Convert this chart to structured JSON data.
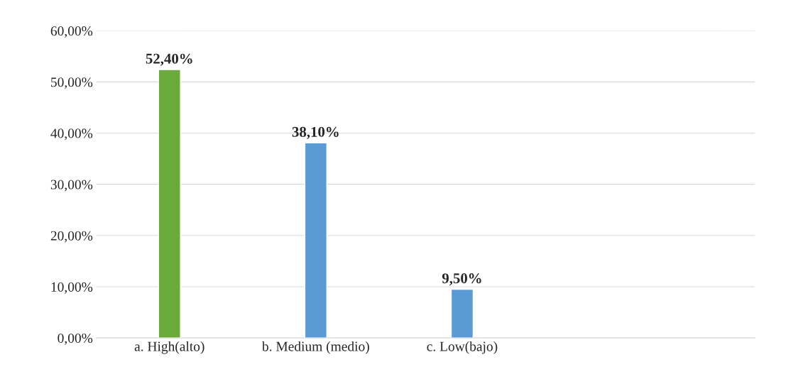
{
  "chart_data": {
    "type": "bar",
    "categories": [
      "a. High(alto)",
      "b. Medium (medio)",
      "c. Low(bajo)"
    ],
    "values": [
      52.4,
      38.1,
      9.5
    ],
    "colors": [
      "#6aaa3a",
      "#5b9bd5",
      "#5b9bd5"
    ],
    "value_labels": [
      "52,40%",
      "38,10%",
      "9,50%"
    ],
    "ylim": [
      0,
      60
    ],
    "yticks": [
      {
        "value": 0,
        "label": "0,00%"
      },
      {
        "value": 10,
        "label": "10,00%"
      },
      {
        "value": 20,
        "label": "20,00%"
      },
      {
        "value": 30,
        "label": "30,00%"
      },
      {
        "value": 40,
        "label": "40,00%"
      },
      {
        "value": 50,
        "label": "50,00%"
      },
      {
        "value": 60,
        "label": "60,00%"
      }
    ],
    "grid": "y"
  }
}
